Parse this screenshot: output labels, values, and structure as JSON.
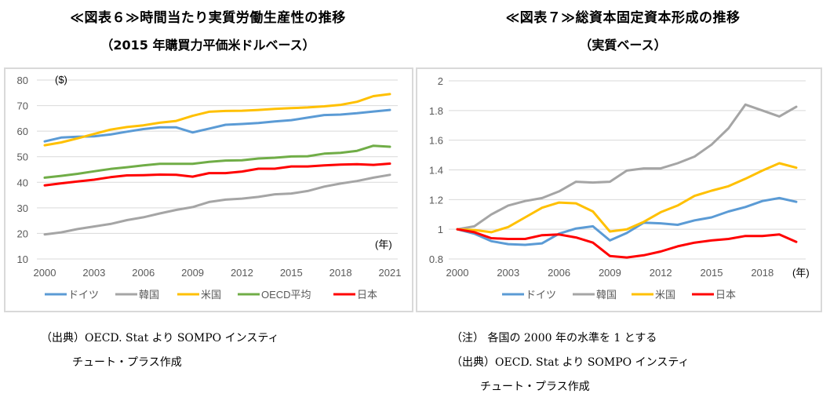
{
  "left": {
    "title": "≪図表６≫時間当たり実質労働生産性の推移",
    "subtitle": "（2015 年購買力平価米ドルベース）",
    "notes": [
      "（出典）OECD. Stat より SOMPO インスティ",
      "チュート・プラス作成"
    ]
  },
  "right": {
    "title": "≪図表７≫総資本固定資本形成の推移",
    "subtitle": "（実質ベース）",
    "notes": [
      "（注） 各国の 2000 年の水準を 1 とする",
      "（出典）OECD. Stat より SOMPO インスティ",
      "チュート・プラス作成"
    ]
  },
  "chart_data": [
    {
      "type": "line",
      "title": "時間当たり実質労働生産性の推移",
      "subtitle": "2015年購買力平価米ドルベース",
      "ylabel": "($)",
      "xlabel": "(年)",
      "ylim": [
        10,
        80
      ],
      "yticks": [
        "10",
        "20",
        "30",
        "40",
        "50",
        "60",
        "70",
        "80"
      ],
      "xtick_labels": [
        "2000",
        "2003",
        "2006",
        "2009",
        "2012",
        "2015",
        "2018",
        "2021"
      ],
      "grid": true,
      "legend": "bottom",
      "x": [
        2000,
        2001,
        2002,
        2003,
        2004,
        2005,
        2006,
        2007,
        2008,
        2009,
        2010,
        2011,
        2012,
        2013,
        2014,
        2015,
        2016,
        2017,
        2018,
        2019,
        2020,
        2021
      ],
      "series": [
        {
          "name": "ドイツ",
          "color": "#5b9bd5",
          "values": [
            56,
            57.5,
            57.8,
            58,
            58.7,
            59.8,
            60.8,
            61.5,
            61.5,
            59.5,
            61,
            62.5,
            62.8,
            63.2,
            63.8,
            64.3,
            65.3,
            66.3,
            66.5,
            67,
            67.7,
            68.3
          ]
        },
        {
          "name": "韓国",
          "color": "#a5a5a5",
          "values": [
            19.6,
            20.4,
            21.7,
            22.7,
            23.7,
            25.2,
            26.3,
            27.8,
            29.2,
            30.3,
            32.3,
            33.2,
            33.6,
            34.3,
            35.3,
            35.6,
            36.6,
            38.3,
            39.5,
            40.5,
            41.8,
            42.9
          ]
        },
        {
          "name": "米国",
          "color": "#ffc000",
          "values": [
            54.5,
            55.6,
            57.2,
            58.9,
            60.6,
            61.6,
            62.3,
            63.3,
            64,
            66,
            67.6,
            67.9,
            68,
            68.3,
            68.7,
            69,
            69.3,
            69.7,
            70.3,
            71.5,
            73.7,
            74.5
          ]
        },
        {
          "name": "OECD平均",
          "color": "#70ad47",
          "values": [
            41.8,
            42.5,
            43.3,
            44.3,
            45.2,
            45.9,
            46.6,
            47.2,
            47.2,
            47.2,
            48,
            48.5,
            48.6,
            49.3,
            49.6,
            50.1,
            50.2,
            51.2,
            51.5,
            52.3,
            54.3,
            53.9
          ]
        },
        {
          "name": "日本",
          "color": "#ff0000",
          "values": [
            38.8,
            39.6,
            40.3,
            41,
            42,
            42.7,
            42.8,
            43,
            42.9,
            42.2,
            43.6,
            43.6,
            44.2,
            45.3,
            45.3,
            46.2,
            46.2,
            46.6,
            46.9,
            47.1,
            46.8,
            47.3
          ]
        }
      ]
    },
    {
      "type": "line",
      "title": "総資本固定資本形成の推移",
      "subtitle": "実質ベース",
      "ylabel": "",
      "xlabel": "(年)",
      "ylim": [
        0.8,
        2
      ],
      "yticks": [
        "0.8",
        "1",
        "1.2",
        "1.4",
        "1.6",
        "1.8",
        "2"
      ],
      "xtick_labels": [
        "2000",
        "2003",
        "2006",
        "2009",
        "2012",
        "2015",
        "2018"
      ],
      "grid": true,
      "legend": "bottom",
      "x": [
        2000,
        2001,
        2002,
        2003,
        2004,
        2005,
        2006,
        2007,
        2008,
        2009,
        2010,
        2011,
        2012,
        2013,
        2014,
        2015,
        2016,
        2017,
        2018,
        2019,
        2020
      ],
      "series": [
        {
          "name": "ドイツ",
          "color": "#5b9bd5",
          "values": [
            1,
            0.97,
            0.92,
            0.9,
            0.895,
            0.905,
            0.97,
            1.005,
            1.02,
            0.925,
            0.975,
            1.045,
            1.04,
            1.03,
            1.06,
            1.08,
            1.12,
            1.15,
            1.19,
            1.21,
            1.185
          ]
        },
        {
          "name": "韓国",
          "color": "#a5a5a5",
          "values": [
            1,
            1.02,
            1.1,
            1.16,
            1.19,
            1.21,
            1.255,
            1.32,
            1.315,
            1.32,
            1.395,
            1.41,
            1.41,
            1.445,
            1.49,
            1.57,
            1.68,
            1.84,
            1.8,
            1.76,
            1.825
          ]
        },
        {
          "name": "米国",
          "color": "#ffc000",
          "values": [
            1,
            0.995,
            0.98,
            1.015,
            1.08,
            1.145,
            1.18,
            1.175,
            1.12,
            0.985,
            1.0,
            1.05,
            1.115,
            1.16,
            1.225,
            1.26,
            1.29,
            1.34,
            1.395,
            1.445,
            1.415
          ]
        },
        {
          "name": "日本",
          "color": "#ff0000",
          "values": [
            1,
            0.98,
            0.94,
            0.935,
            0.935,
            0.96,
            0.965,
            0.945,
            0.91,
            0.82,
            0.81,
            0.825,
            0.85,
            0.885,
            0.91,
            0.925,
            0.935,
            0.955,
            0.955,
            0.965,
            0.915
          ]
        }
      ]
    }
  ]
}
